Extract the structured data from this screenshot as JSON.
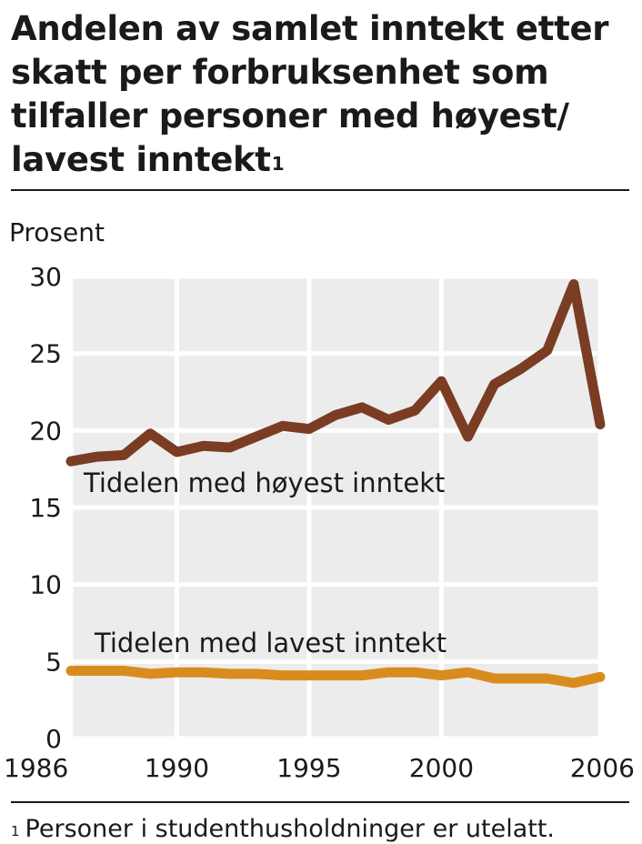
{
  "title": "Andelen av samlet inntekt etter skatt per forbruksenhet som tilfaller personer med høyest/ lavest inntekt",
  "title_footnote_mark": "1",
  "footnote": {
    "mark": "1",
    "text": "Personer i studenthusholdninger er utelatt."
  },
  "colors": {
    "plot_background": "#ececec",
    "grid": "#ffffff",
    "series_high": "#7a3d24",
    "series_low": "#d98c1e"
  },
  "chart_data": {
    "type": "line",
    "ylabel": "Prosent",
    "xlabel": "",
    "xlim": [
      1986,
      2006
    ],
    "ylim": [
      0,
      30
    ],
    "x_ticks": [
      "1986",
      "1990",
      "1995",
      "2000",
      "2006"
    ],
    "y_ticks": [
      "0",
      "5",
      "10",
      "15",
      "20",
      "25",
      "30"
    ],
    "grid": true,
    "x": [
      1986,
      1987,
      1988,
      1989,
      1990,
      1991,
      1992,
      1993,
      1994,
      1995,
      1996,
      1997,
      1998,
      1999,
      2000,
      2001,
      2002,
      2003,
      2004,
      2005,
      2006
    ],
    "series": [
      {
        "name": "Tidelen med høyest inntekt",
        "color": "#7a3d24",
        "values": [
          18.0,
          18.3,
          18.4,
          19.8,
          18.6,
          19.0,
          18.9,
          19.6,
          20.3,
          20.1,
          21.0,
          21.5,
          20.7,
          21.3,
          23.2,
          19.6,
          23.0,
          24.0,
          25.2,
          29.5,
          20.4
        ]
      },
      {
        "name": "Tidelen med lavest inntekt",
        "color": "#d98c1e",
        "values": [
          4.4,
          4.4,
          4.4,
          4.2,
          4.3,
          4.3,
          4.2,
          4.2,
          4.1,
          4.1,
          4.1,
          4.1,
          4.3,
          4.3,
          4.1,
          4.3,
          3.9,
          3.9,
          3.9,
          3.6,
          4.0
        ]
      }
    ]
  }
}
